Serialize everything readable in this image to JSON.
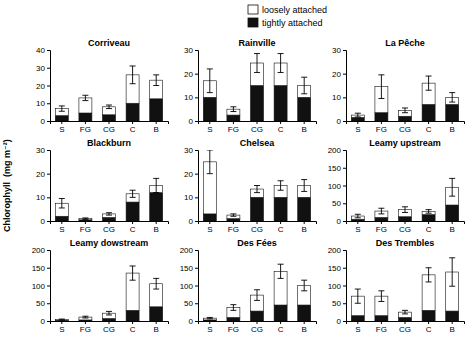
{
  "chart_data": [
    {
      "type": "bar",
      "stacked": true,
      "title": "Corriveau",
      "ylabel": "Chlorophyll  (mg m⁻²)",
      "categories": [
        "S",
        "FG",
        "CG",
        "C",
        "B"
      ],
      "series": [
        {
          "name": "tightly attached",
          "color": "#111111",
          "values": [
            3.0,
            4.5,
            3.5,
            10.0,
            12.5
          ]
        },
        {
          "name": "loosely attached",
          "color": "#ffffff",
          "values": [
            4.0,
            8.5,
            4.5,
            16.0,
            10.5
          ],
          "errors": [
            1.5,
            1.5,
            1.0,
            5.0,
            3.0
          ]
        }
      ],
      "ylim": [
        0,
        40
      ],
      "yticks": [
        0,
        10,
        20,
        30,
        40
      ]
    },
    {
      "type": "bar",
      "stacked": true,
      "title": "Rainville",
      "categories": [
        "S",
        "FG",
        "CG",
        "C",
        "B"
      ],
      "series": [
        {
          "color": "#111111",
          "values": [
            10.0,
            2.5,
            15.0,
            15.0,
            10.0
          ]
        },
        {
          "color": "#ffffff",
          "values": [
            7.0,
            2.5,
            9.5,
            9.5,
            5.0
          ],
          "errors": [
            5.0,
            1.0,
            4.0,
            4.0,
            3.5
          ]
        }
      ],
      "ylim": [
        0,
        30
      ],
      "yticks": [
        0,
        10,
        20,
        30
      ]
    },
    {
      "type": "bar",
      "stacked": true,
      "title": "La Pêche",
      "categories": [
        "S",
        "FG",
        "CG",
        "C",
        "B"
      ],
      "series": [
        {
          "color": "#111111",
          "values": [
            1.5,
            3.5,
            2.0,
            7.0,
            7.0
          ]
        },
        {
          "color": "#ffffff",
          "values": [
            1.0,
            11.0,
            2.5,
            9.0,
            3.0
          ],
          "errors": [
            0.8,
            5.0,
            1.0,
            3.0,
            2.0
          ]
        }
      ],
      "ylim": [
        0,
        30
      ],
      "yticks": [
        0,
        10,
        20,
        30
      ]
    },
    {
      "type": "bar",
      "stacked": true,
      "title": "Blackburn",
      "categories": [
        "S",
        "FG",
        "CG",
        "C",
        "B"
      ],
      "series": [
        {
          "color": "#111111",
          "values": [
            2.0,
            0.5,
            1.5,
            8.0,
            12.0
          ]
        },
        {
          "color": "#ffffff",
          "values": [
            5.5,
            0.5,
            1.5,
            3.5,
            3.0
          ],
          "errors": [
            2.0,
            0.3,
            0.5,
            1.5,
            3.0
          ]
        }
      ],
      "ylim": [
        0,
        30
      ],
      "yticks": [
        0,
        10,
        20,
        30
      ]
    },
    {
      "type": "bar",
      "stacked": true,
      "title": "Chelsea",
      "categories": [
        "S",
        "FG",
        "CG",
        "C",
        "B"
      ],
      "series": [
        {
          "color": "#111111",
          "values": [
            3.0,
            1.0,
            10.0,
            10.0,
            10.0
          ]
        },
        {
          "color": "#ffffff",
          "values": [
            22.0,
            1.5,
            3.5,
            5.0,
            5.0
          ],
          "errors": [
            5.0,
            0.5,
            1.5,
            2.0,
            2.5
          ]
        }
      ],
      "ylim": [
        0,
        30
      ],
      "yticks": [
        0,
        10,
        20,
        30
      ]
    },
    {
      "type": "bar",
      "stacked": true,
      "title": "Leamy upstream",
      "categories": [
        "S",
        "FG",
        "CG",
        "C",
        "B"
      ],
      "series": [
        {
          "color": "#111111",
          "values": [
            5.0,
            10.0,
            12.0,
            18.0,
            45.0
          ]
        },
        {
          "color": "#ffffff",
          "values": [
            9.0,
            18.0,
            20.0,
            9.0,
            50.0
          ],
          "errors": [
            5.0,
            8.0,
            8.0,
            5.0,
            25.0
          ]
        }
      ],
      "ylim": [
        0,
        200
      ],
      "yticks": [
        0,
        50,
        100,
        150,
        200
      ]
    },
    {
      "type": "bar",
      "stacked": true,
      "title": "Leamy dowstream",
      "categories": [
        "S",
        "FG",
        "CG",
        "C",
        "B"
      ],
      "series": [
        {
          "color": "#111111",
          "values": [
            2.0,
            3.0,
            7.0,
            30.0,
            40.0
          ]
        },
        {
          "color": "#ffffff",
          "values": [
            2.0,
            8.0,
            15.0,
            105.0,
            65.0
          ],
          "errors": [
            1.5,
            2.5,
            5.0,
            20.0,
            15.0
          ]
        }
      ],
      "ylim": [
        0,
        200
      ],
      "yticks": [
        0,
        50,
        100,
        150,
        200
      ]
    },
    {
      "type": "bar",
      "stacked": true,
      "title": "Des Fées",
      "categories": [
        "S",
        "FG",
        "CG",
        "C",
        "B"
      ],
      "series": [
        {
          "color": "#111111",
          "values": [
            3.0,
            10.0,
            28.0,
            45.0,
            45.0
          ]
        },
        {
          "color": "#ffffff",
          "values": [
            5.0,
            28.0,
            45.0,
            95.0,
            55.0
          ],
          "errors": [
            2.0,
            8.0,
            15.0,
            20.0,
            15.0
          ]
        }
      ],
      "ylim": [
        0,
        200
      ],
      "yticks": [
        0,
        50,
        100,
        150,
        200
      ]
    },
    {
      "type": "bar",
      "stacked": true,
      "title": "Des Trembles",
      "categories": [
        "S",
        "FG",
        "CG",
        "C",
        "B"
      ],
      "series": [
        {
          "color": "#111111",
          "values": [
            15.0,
            15.0,
            10.0,
            30.0,
            28.0
          ]
        },
        {
          "color": "#ffffff",
          "values": [
            55.0,
            55.0,
            15.0,
            100.0,
            110.0
          ],
          "errors": [
            20.0,
            15.0,
            5.0,
            20.0,
            40.0
          ]
        }
      ],
      "ylim": [
        0,
        200
      ],
      "yticks": [
        0,
        50,
        100,
        150,
        200
      ]
    }
  ]
}
